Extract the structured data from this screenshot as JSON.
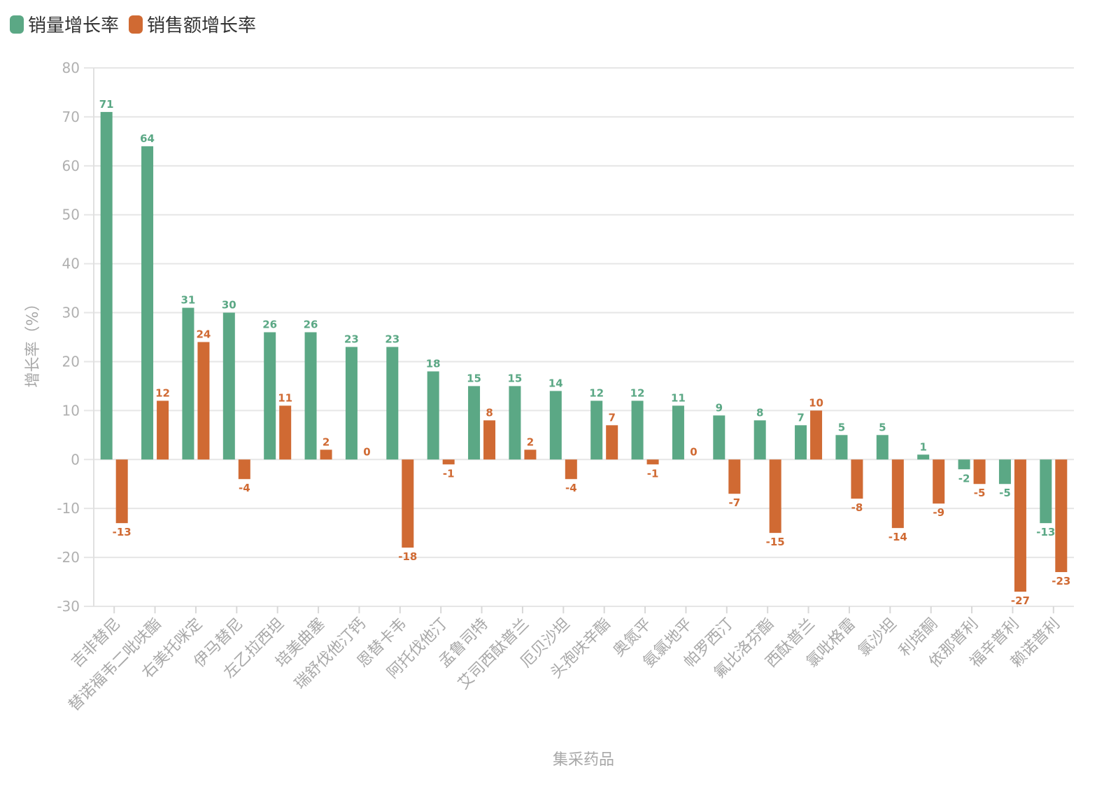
{
  "legend": {
    "series1": "销量增长率",
    "series2": "销售额增长率"
  },
  "colors": {
    "series1": "#5ba885",
    "series2": "#d06a33",
    "grid": "#e6e6e6",
    "axis_text": "#a8a8a8"
  },
  "chart_data": {
    "type": "bar",
    "xlabel": "集采药品",
    "ylabel": "增长率（%）",
    "ylim": [
      -30,
      80
    ],
    "yticks": [
      80,
      70,
      60,
      50,
      40,
      30,
      20,
      10,
      0,
      -10,
      -20,
      -30
    ],
    "grid": true,
    "legend_position": "top-left",
    "categories": [
      "吉非替尼",
      "替诺福韦二吡呋酯",
      "右美托咪定",
      "伊马替尼",
      "左乙拉西坦",
      "培美曲塞",
      "瑞舒伐他汀钙",
      "恩替卡韦",
      "阿托伐他汀",
      "孟鲁司特",
      "艾司西酞普兰",
      "厄贝沙坦",
      "头孢呋辛酯",
      "奥氮平",
      "氨氯地平",
      "帕罗西汀",
      "氟比洛芬酯",
      "西酞普兰",
      "氯吡格雷",
      "氯沙坦",
      "利培酮",
      "依那普利",
      "福辛普利",
      "赖诺普利"
    ],
    "series": [
      {
        "name": "销量增长率",
        "values": [
          71,
          64,
          31,
          30,
          26,
          26,
          23,
          23,
          18,
          15,
          15,
          14,
          12,
          12,
          11,
          9,
          8,
          7,
          5,
          5,
          1,
          -2,
          -5,
          -13
        ]
      },
      {
        "name": "销售额增长率",
        "values": [
          -13,
          12,
          24,
          -4,
          11,
          2,
          0,
          -18,
          -1,
          8,
          2,
          -4,
          7,
          -1,
          0,
          -7,
          -15,
          10,
          -8,
          -14,
          -9,
          -5,
          -27,
          -23
        ]
      }
    ]
  }
}
